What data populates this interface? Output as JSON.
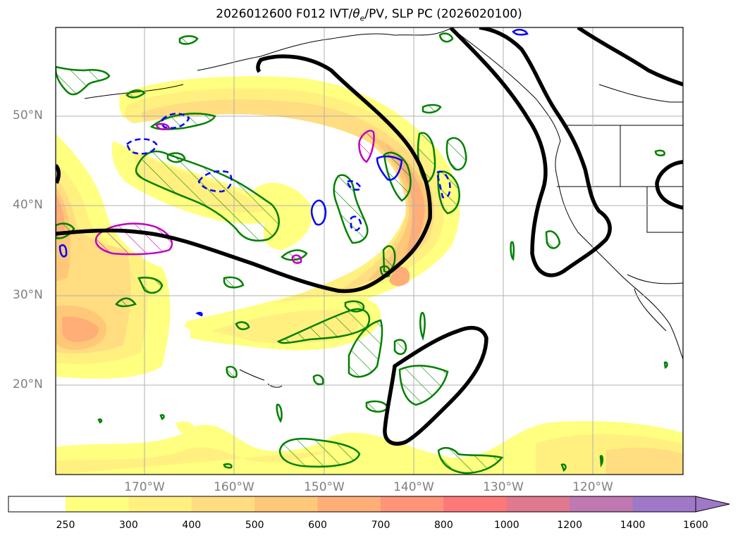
{
  "title": {
    "prefix": "2026012600 F012 IVT/",
    "theta": "θ",
    "theta_sub": "e",
    "suffix": "/PV, SLP PC (2026020100)"
  },
  "map": {
    "lat_labels": [
      "50°N",
      "40°N",
      "30°N",
      "20°N"
    ],
    "lon_labels": [
      "170°W",
      "160°W",
      "150°W",
      "140°W",
      "130°W",
      "120°W"
    ],
    "contour_colors": {
      "slp": "#000000",
      "pv": "#008000",
      "theta_cold": "#0000ff",
      "theta_warm": "#c000c0"
    },
    "gridline_color": "#b0b0b0"
  },
  "colorbar": {
    "ticks": [
      "250",
      "300",
      "400",
      "500",
      "600",
      "700",
      "800",
      "1000",
      "1200",
      "1400",
      "1600"
    ],
    "colors": [
      "#ffffff",
      "#ffff80",
      "#fff080",
      "#ffdd80",
      "#ffc878",
      "#ffae78",
      "#ff9478",
      "#ff7878",
      "#e07890",
      "#c078b0",
      "#a078c8"
    ]
  }
}
